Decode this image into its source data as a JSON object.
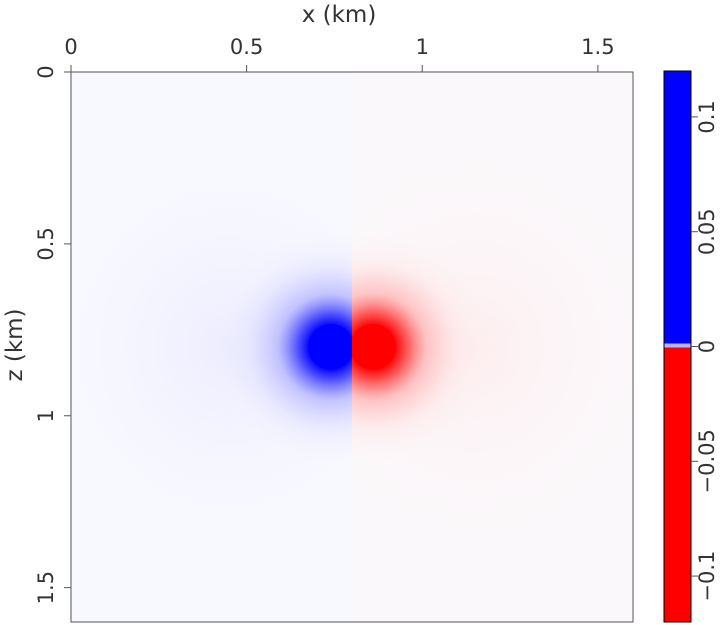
{
  "chart_data": {
    "type": "heatmap",
    "title": "",
    "xlabel": "x (km)",
    "ylabel": "z (km)",
    "xlim": [
      0,
      1.6
    ],
    "ylim": [
      1.6,
      0
    ],
    "x_axis_position": "top",
    "y_axis_direction": "down",
    "x_ticks": [
      0,
      0.5,
      1,
      1.5
    ],
    "x_tick_labels": [
      "0",
      "0.5",
      "1",
      "1.5"
    ],
    "y_ticks": [
      0,
      0.5,
      1,
      1.5
    ],
    "y_tick_labels": [
      "0",
      "0.5",
      "1",
      "1.5"
    ],
    "field": {
      "description_units": "amplitude",
      "source_x": 0.8,
      "source_z": 0.8,
      "left_lobe_center": [
        0.74,
        0.8
      ],
      "right_lobe_center": [
        0.86,
        0.8
      ],
      "saturation_radius": 0.065,
      "left_sign": 1,
      "right_sign": -1
    },
    "colorbar": {
      "position": "right",
      "range": [
        -0.12,
        0.12
      ],
      "ticks": [
        0.1,
        0.05,
        0,
        -0.05,
        -0.1
      ],
      "tick_labels": [
        "0.1",
        "0.05",
        "0",
        "−0.05",
        "−0.1"
      ],
      "positive_color": "#0000ff",
      "negative_color": "#ff0000",
      "zero_color": "#ffffff",
      "near_zero_color": "#b4b4ff"
    },
    "grid": false
  }
}
